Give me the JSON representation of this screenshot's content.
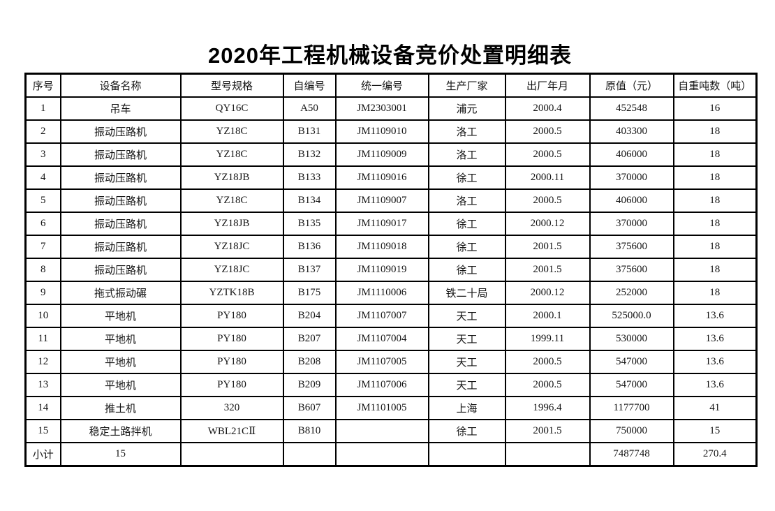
{
  "title": "2020年工程机械设备竞价处置明细表",
  "table": {
    "headers": [
      "序号",
      "设备名称",
      "型号规格",
      "自编号",
      "统一编号",
      "生产厂家",
      "出厂年月",
      "原值（元）",
      "自重吨数（吨）"
    ],
    "rows": [
      [
        "1",
        "吊车",
        "QY16C",
        "A50",
        "JM2303001",
        "浦元",
        "2000.4",
        "452548",
        "16"
      ],
      [
        "2",
        "振动压路机",
        "YZ18C",
        "B131",
        "JM1109010",
        "洛工",
        "2000.5",
        "403300",
        "18"
      ],
      [
        "3",
        "振动压路机",
        "YZ18C",
        "B132",
        "JM1109009",
        "洛工",
        "2000.5",
        "406000",
        "18"
      ],
      [
        "4",
        "振动压路机",
        "YZ18JB",
        "B133",
        "JM1109016",
        "徐工",
        "2000.11",
        "370000",
        "18"
      ],
      [
        "5",
        "振动压路机",
        "YZ18C",
        "B134",
        "JM1109007",
        "洛工",
        "2000.5",
        "406000",
        "18"
      ],
      [
        "6",
        "振动压路机",
        "YZ18JB",
        "B135",
        "JM1109017",
        "徐工",
        "2000.12",
        "370000",
        "18"
      ],
      [
        "7",
        "振动压路机",
        "YZ18JC",
        "B136",
        "JM1109018",
        "徐工",
        "2001.5",
        "375600",
        "18"
      ],
      [
        "8",
        "振动压路机",
        "YZ18JC",
        "B137",
        "JM1109019",
        "徐工",
        "2001.5",
        "375600",
        "18"
      ],
      [
        "9",
        "拖式振动碾",
        "YZTK18B",
        "B175",
        "JM1110006",
        "铁二十局",
        "2000.12",
        "252000",
        "18"
      ],
      [
        "10",
        "平地机",
        "PY180",
        "B204",
        "JM1107007",
        "天工",
        "2000.1",
        "525000.0",
        "13.6"
      ],
      [
        "11",
        "平地机",
        "PY180",
        "B207",
        "JM1107004",
        "天工",
        "1999.11",
        "530000",
        "13.6"
      ],
      [
        "12",
        "平地机",
        "PY180",
        "B208",
        "JM1107005",
        "天工",
        "2000.5",
        "547000",
        "13.6"
      ],
      [
        "13",
        "平地机",
        "PY180",
        "B209",
        "JM1107006",
        "天工",
        "2000.5",
        "547000",
        "13.6"
      ],
      [
        "14",
        "推土机",
        "320",
        "B607",
        "JM1101005",
        "上海",
        "1996.4",
        "1177700",
        "41"
      ],
      [
        "15",
        "稳定土路拌机",
        "WBL21CⅡ",
        "B810",
        "",
        "徐工",
        "2001.5",
        "750000",
        "15"
      ],
      [
        "小计",
        "15",
        "",
        "",
        "",
        "",
        "",
        "7487748",
        "270.4"
      ]
    ]
  }
}
